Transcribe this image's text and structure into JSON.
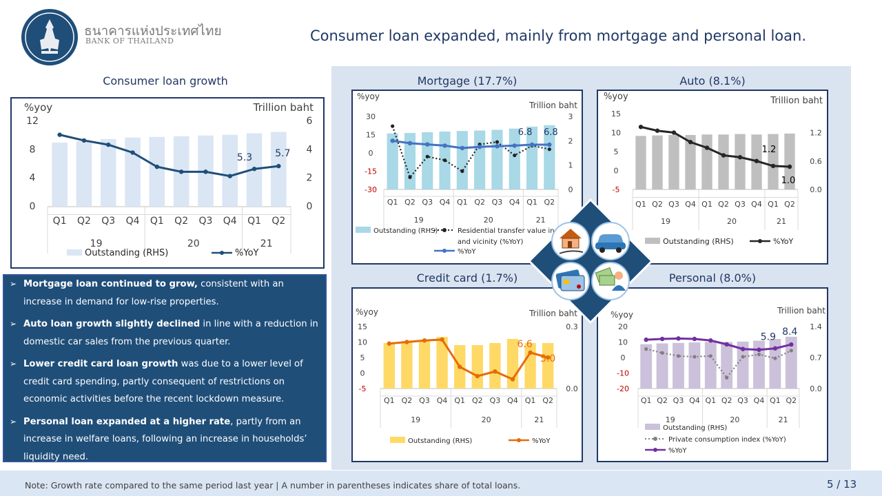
{
  "header": {
    "org_thai": "ธนาคารแห่งประเทศไทย",
    "org_english": "BANK OF THAILAND",
    "title": "Consumer loan expanded, mainly from mortgage and personal loan."
  },
  "colors": {
    "navy": "#1f3864",
    "panel_bg": "#dae3f0",
    "text_box": "#1f4e79"
  },
  "icons": [
    "house-coin-icon",
    "car-icon",
    "credit-card-icon",
    "person-money-icon"
  ],
  "bullets": [
    {
      "bold": "Mortgage loan continued to grow,",
      "text": " consistent with an increase in demand for low-rise properties."
    },
    {
      "bold": "Auto loan growth slightly declined",
      "text": "  in line with a reduction in domestic car sales from the previous quarter."
    },
    {
      "bold": "Lower credit card loan growth",
      "text": " was due to a lower level of credit card spending, partly consequent of restrictions on economic activities before the recent lockdown measure."
    },
    {
      "bold": "Personal loan expanded at a higher rate",
      "text": ", partly from an increase in welfare loans, following an increase in households’ liquidity need."
    }
  ],
  "footer": {
    "note": "Note: Growth rate compared to the same period last year | A number in parentheses indicates share of total loans.",
    "page": "5 / 13"
  },
  "chart_data": [
    {
      "id": "consumer",
      "type": "bar+line",
      "title": "Consumer loan growth",
      "categories": [
        "Q1",
        "Q2",
        "Q3",
        "Q4",
        "Q1",
        "Q2",
        "Q3",
        "Q4",
        "Q1",
        "Q2"
      ],
      "years": [
        {
          "label": "19",
          "span": 4
        },
        {
          "label": "20",
          "span": 4
        },
        {
          "label": "21",
          "span": 2
        }
      ],
      "left_axis_label": "%yoy",
      "right_axis_label": "Trillion baht",
      "left_ticks": [
        "12",
        "8",
        "4",
        "0"
      ],
      "right_ticks": [
        "6",
        "4",
        "2",
        "0"
      ],
      "ylim_left": [
        0,
        12
      ],
      "ylim_right": [
        0,
        6
      ],
      "series": [
        {
          "name": "Outstanding (RHS)",
          "kind": "bar",
          "axis": "right",
          "color": "#dae6f4",
          "values": [
            4.5,
            4.6,
            4.75,
            4.85,
            4.9,
            4.95,
            5.0,
            5.05,
            5.15,
            5.25
          ]
        },
        {
          "name": "%YoY",
          "kind": "line",
          "axis": "left",
          "color": "#1f4e79",
          "values": [
            10.1,
            9.3,
            8.7,
            7.6,
            5.6,
            4.9,
            4.9,
            4.3,
            5.3,
            5.7
          ]
        }
      ],
      "annotations": [
        "5.3",
        "5.7"
      ]
    },
    {
      "id": "mortgage",
      "type": "bar+line",
      "title": "Mortgage (17.7%)",
      "categories": [
        "Q1",
        "Q2",
        "Q3",
        "Q4",
        "Q1",
        "Q2",
        "Q3",
        "Q4",
        "Q1",
        "Q2"
      ],
      "years": [
        {
          "label": "19",
          "span": 4
        },
        {
          "label": "20",
          "span": 4
        },
        {
          "label": "21",
          "span": 2
        }
      ],
      "left_axis_label": "%yoy",
      "right_axis_label": "Trillion baht",
      "left_ticks": [
        "30",
        "15",
        "0",
        "-15",
        "-30"
      ],
      "right_ticks": [
        "3",
        "2",
        "1",
        "0"
      ],
      "ylim_left": [
        -30,
        30
      ],
      "ylim_right": [
        0,
        3
      ],
      "series": [
        {
          "name": "Outstanding (RHS)",
          "kind": "bar",
          "axis": "right",
          "color": "#a9d8e6",
          "values": [
            2.3,
            2.32,
            2.35,
            2.38,
            2.4,
            2.42,
            2.45,
            2.5,
            2.58,
            2.64
          ]
        },
        {
          "name": "Residential transfer value in Bangkok and vicinity (%YoY)",
          "kind": "dotted",
          "axis": "left",
          "color": "#222222",
          "values": [
            22,
            -20,
            -3,
            -6,
            -15,
            7,
            9,
            -2,
            6,
            3
          ]
        },
        {
          "name": "%YoY",
          "kind": "line",
          "axis": "left",
          "color": "#4472c4",
          "values": [
            10,
            8,
            7,
            6,
            4,
            5,
            5.5,
            6,
            6.8,
            6.8
          ]
        }
      ],
      "annotations": [
        "6.8",
        "6.8"
      ]
    },
    {
      "id": "auto",
      "type": "bar+line",
      "title": "Auto (8.1%)",
      "categories": [
        "Q1",
        "Q2",
        "Q3",
        "Q4",
        "Q1",
        "Q2",
        "Q3",
        "Q4",
        "Q1",
        "Q2"
      ],
      "years": [
        {
          "label": "19",
          "span": 4
        },
        {
          "label": "20",
          "span": 4
        },
        {
          "label": "21",
          "span": 2
        }
      ],
      "left_axis_label": "%yoy",
      "right_axis_label": "Trillion baht",
      "left_ticks": [
        "15",
        "10",
        "5",
        "0",
        "-5"
      ],
      "right_ticks": [
        "1.2",
        "0.6",
        "0.0"
      ],
      "ylim_left": [
        -5,
        15
      ],
      "ylim_right": [
        0,
        1.6
      ],
      "series": [
        {
          "name": "Outstanding (RHS)",
          "kind": "bar",
          "axis": "right",
          "color": "#bfbfbf",
          "values": [
            1.13,
            1.14,
            1.15,
            1.15,
            1.16,
            1.16,
            1.17,
            1.16,
            1.17,
            1.18
          ]
        },
        {
          "name": "%YoY",
          "kind": "line",
          "axis": "left",
          "color": "#262626",
          "values": [
            11.5,
            10.5,
            10,
            7.5,
            6,
            4,
            3.5,
            2.5,
            1.2,
            1.0
          ]
        }
      ],
      "annotations": [
        "1.2",
        "1.0"
      ]
    },
    {
      "id": "credit",
      "type": "bar+line",
      "title": "Credit card (1.7%)",
      "categories": [
        "Q1",
        "Q2",
        "Q3",
        "Q4",
        "Q1",
        "Q2",
        "Q3",
        "Q4",
        "Q1",
        "Q2"
      ],
      "years": [
        {
          "label": "19",
          "span": 4
        },
        {
          "label": "20",
          "span": 4
        },
        {
          "label": "21",
          "span": 2
        }
      ],
      "left_axis_label": "%yoy",
      "right_axis_label": "Trillion baht",
      "left_ticks": [
        "15",
        "10",
        "5",
        "0",
        "-5"
      ],
      "right_ticks": [
        "0.3",
        "0.0"
      ],
      "ylim_left": [
        -5,
        15
      ],
      "ylim_right": [
        0,
        0.3
      ],
      "series": [
        {
          "name": "Outstanding (RHS)",
          "kind": "bar",
          "axis": "right",
          "color": "#ffd966",
          "values": [
            0.22,
            0.23,
            0.23,
            0.25,
            0.21,
            0.21,
            0.22,
            0.24,
            0.22,
            0.22
          ]
        },
        {
          "name": "%YoY",
          "kind": "line",
          "axis": "left",
          "color": "#e46c0a",
          "values": [
            9.5,
            10,
            10.5,
            10.8,
            2,
            -1,
            0.5,
            -2,
            6.6,
            5.0
          ]
        }
      ],
      "annotations": [
        "6.6",
        "5.0"
      ]
    },
    {
      "id": "personal",
      "type": "bar+line",
      "title": "Personal (8.0%)",
      "categories": [
        "Q1",
        "Q2",
        "Q3",
        "Q4",
        "Q1",
        "Q2",
        "Q3",
        "Q4",
        "Q1",
        "Q2"
      ],
      "years": [
        {
          "label": "19",
          "span": 4
        },
        {
          "label": "20",
          "span": 4
        },
        {
          "label": "21",
          "span": 2
        }
      ],
      "left_axis_label": "%yoy",
      "right_axis_label": "Trillion baht",
      "left_ticks": [
        "20",
        "10",
        "0",
        "-10",
        "-20"
      ],
      "right_ticks": [
        "1.4",
        "0.7",
        "0.0"
      ],
      "ylim_left": [
        -20,
        20
      ],
      "ylim_right": [
        0,
        1.4
      ],
      "series": [
        {
          "name": "Outstanding (RHS)",
          "kind": "bar",
          "axis": "right",
          "color": "#ccc1da",
          "values": [
            1.0,
            1.02,
            1.03,
            1.04,
            1.05,
            1.05,
            1.06,
            1.08,
            1.12,
            1.17
          ]
        },
        {
          "name": "Private consumption index (%YoY)",
          "kind": "dotted",
          "axis": "left",
          "color": "#7f7f7f",
          "values": [
            5.5,
            3,
            1,
            0.5,
            1,
            -13,
            0.5,
            2,
            -0.5,
            4.5
          ]
        },
        {
          "name": "%YoY",
          "kind": "line",
          "axis": "left",
          "color": "#7030a0",
          "values": [
            11.5,
            12,
            12.3,
            12,
            11,
            8.5,
            5.5,
            5,
            5.9,
            8.4
          ]
        }
      ],
      "annotations": [
        "5.9",
        "8.4"
      ]
    }
  ]
}
